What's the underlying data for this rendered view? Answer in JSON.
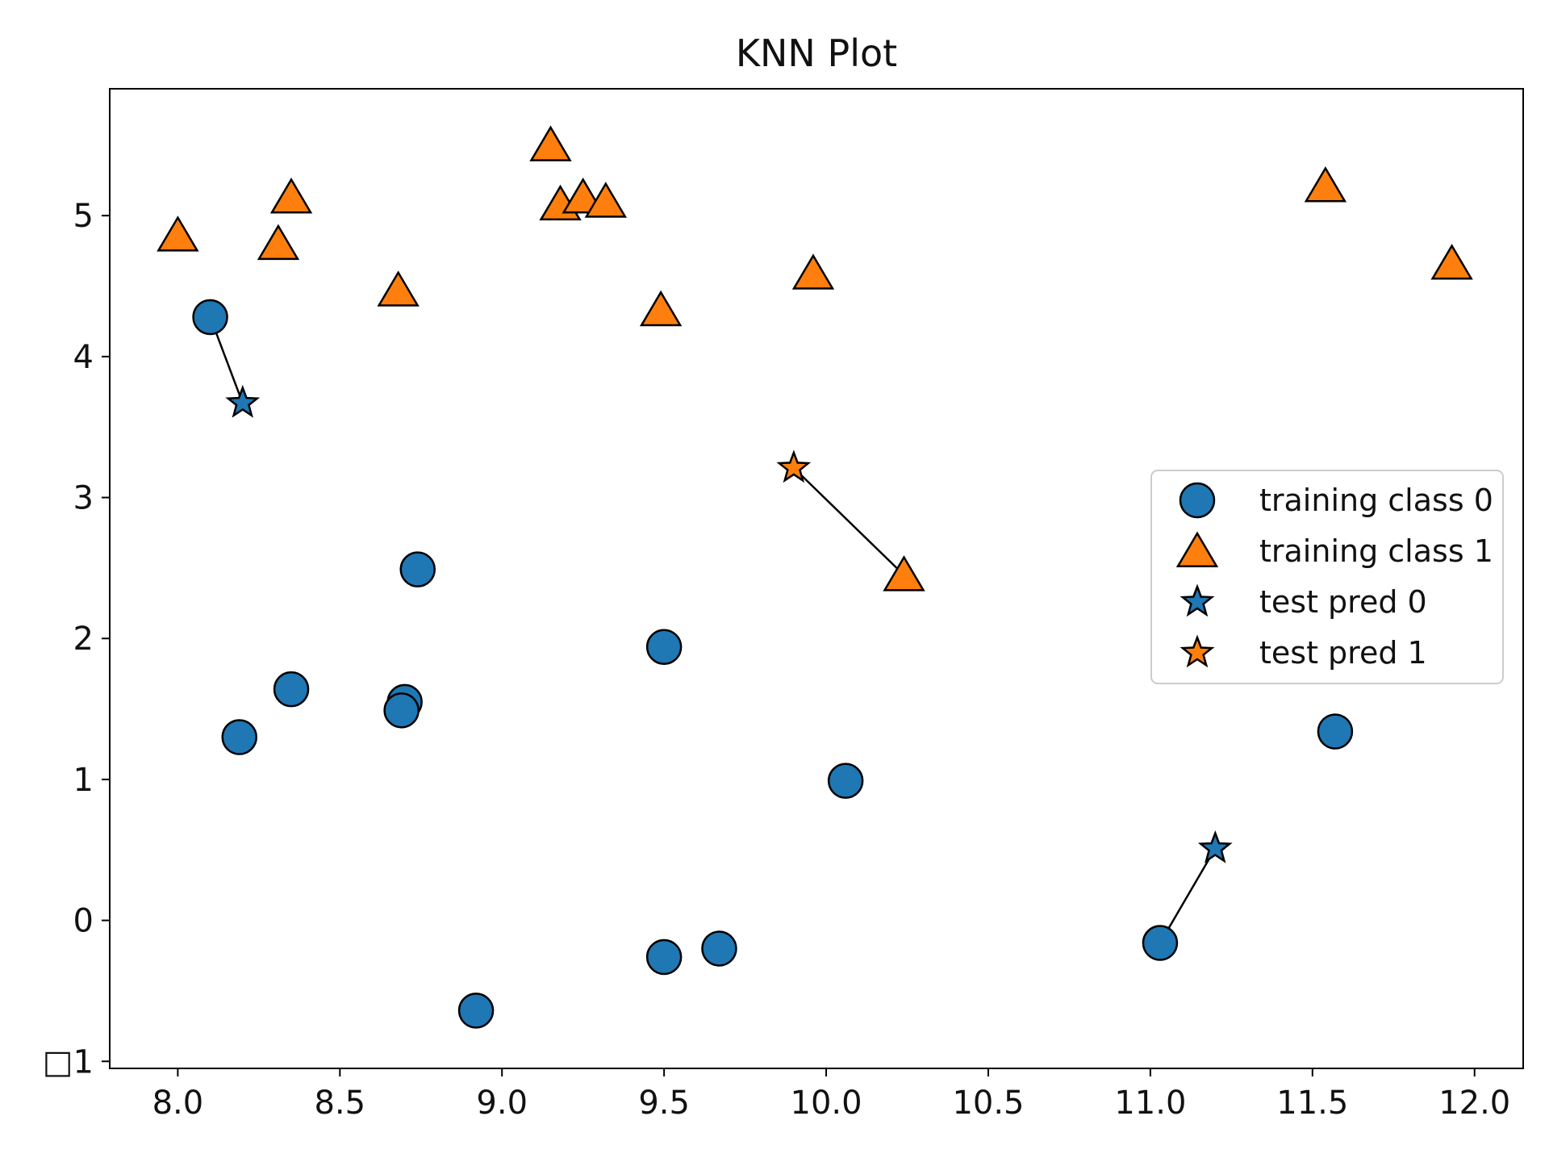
{
  "chart_data": {
    "type": "scatter",
    "title": "KNN Plot",
    "xlabel": "",
    "ylabel": "",
    "xlim": [
      7.79,
      12.15
    ],
    "ylim": [
      -1.05,
      5.9
    ],
    "x_ticks": [
      8.0,
      8.5,
      9.0,
      9.5,
      10.0,
      10.5,
      11.0,
      11.5,
      12.0
    ],
    "x_tick_labels": [
      "8.0",
      "8.5",
      "9.0",
      "9.5",
      "10.0",
      "10.5",
      "11.0",
      "11.5",
      "12.0"
    ],
    "y_ticks": [
      -1,
      0,
      1,
      2,
      3,
      4,
      5
    ],
    "y_tick_labels": [
      "□1",
      "0",
      "1",
      "2",
      "3",
      "4",
      "5"
    ],
    "grid": false,
    "legend_position": "center-right",
    "series": [
      {
        "name": "training class 0",
        "marker": "circle",
        "color": "#1f77b4",
        "points": [
          [
            8.1,
            4.28
          ],
          [
            8.19,
            1.3
          ],
          [
            8.35,
            1.64
          ],
          [
            8.7,
            1.55
          ],
          [
            8.69,
            1.49
          ],
          [
            8.74,
            2.49
          ],
          [
            8.92,
            -0.64
          ],
          [
            9.5,
            1.94
          ],
          [
            9.5,
            -0.26
          ],
          [
            9.67,
            -0.2
          ],
          [
            10.06,
            0.99
          ],
          [
            11.03,
            -0.16
          ],
          [
            11.57,
            1.34
          ]
        ]
      },
      {
        "name": "training class 1",
        "marker": "triangle",
        "color": "#ff7f0e",
        "points": [
          [
            8.0,
            4.86
          ],
          [
            8.31,
            4.8
          ],
          [
            8.35,
            5.13
          ],
          [
            8.68,
            4.47
          ],
          [
            9.15,
            5.5
          ],
          [
            9.18,
            5.08
          ],
          [
            9.25,
            5.13
          ],
          [
            9.32,
            5.1
          ],
          [
            9.49,
            4.33
          ],
          [
            9.96,
            4.59
          ],
          [
            10.24,
            2.45
          ],
          [
            11.54,
            5.21
          ],
          [
            11.93,
            4.66
          ]
        ]
      },
      {
        "name": "test pred 0",
        "marker": "star",
        "color": "#1f77b4",
        "points": [
          [
            8.2,
            3.67
          ],
          [
            11.2,
            0.51
          ]
        ]
      },
      {
        "name": "test pred 1",
        "marker": "star",
        "color": "#ff7f0e",
        "points": [
          [
            9.9,
            3.21
          ]
        ]
      }
    ],
    "neighbor_lines": [
      [
        [
          8.2,
          3.67
        ],
        [
          8.1,
          4.28
        ]
      ],
      [
        [
          9.9,
          3.21
        ],
        [
          10.24,
          2.45
        ]
      ],
      [
        [
          11.2,
          0.51
        ],
        [
          11.03,
          -0.16
        ]
      ]
    ]
  }
}
